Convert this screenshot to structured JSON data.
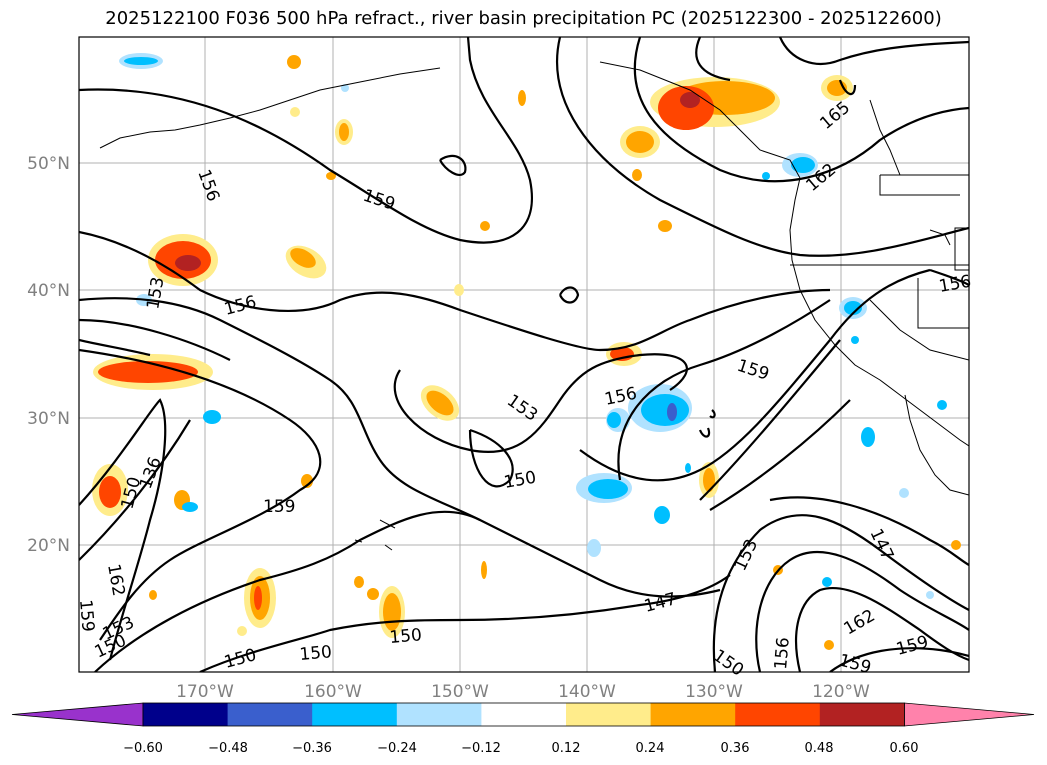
{
  "title": "2025122100 F036 500 hPa refract., river basin precipitation PC (2025122300 - 2025122600)",
  "axes": {
    "lon_ticks": [
      "170°W",
      "160°W",
      "150°W",
      "140°W",
      "130°W",
      "120°W"
    ],
    "lat_ticks": [
      "50°N",
      "40°N",
      "30°N",
      "20°N"
    ]
  },
  "contour_labels": [
    "156",
    "159",
    "153",
    "156",
    "165",
    "162",
    "156",
    "159",
    "156",
    "153",
    "150",
    "159",
    "150",
    "136",
    "162",
    "159",
    "153",
    "150",
    "150",
    "150",
    "150",
    "147",
    "153",
    "147",
    "162",
    "156",
    "150",
    "159",
    "159"
  ],
  "colorbar": {
    "ticks": [
      "−0.60",
      "−0.48",
      "−0.36",
      "−0.24",
      "−0.12",
      "0.12",
      "0.24",
      "0.36",
      "0.48",
      "0.60"
    ],
    "colors": [
      "#9932cc",
      "#00008b",
      "#3a5fcd",
      "#00bfff",
      "#b0e2ff",
      "#ffffff",
      "#ffec8b",
      "#ffa500",
      "#ff4500",
      "#b22222",
      "#ff82ab"
    ]
  }
}
